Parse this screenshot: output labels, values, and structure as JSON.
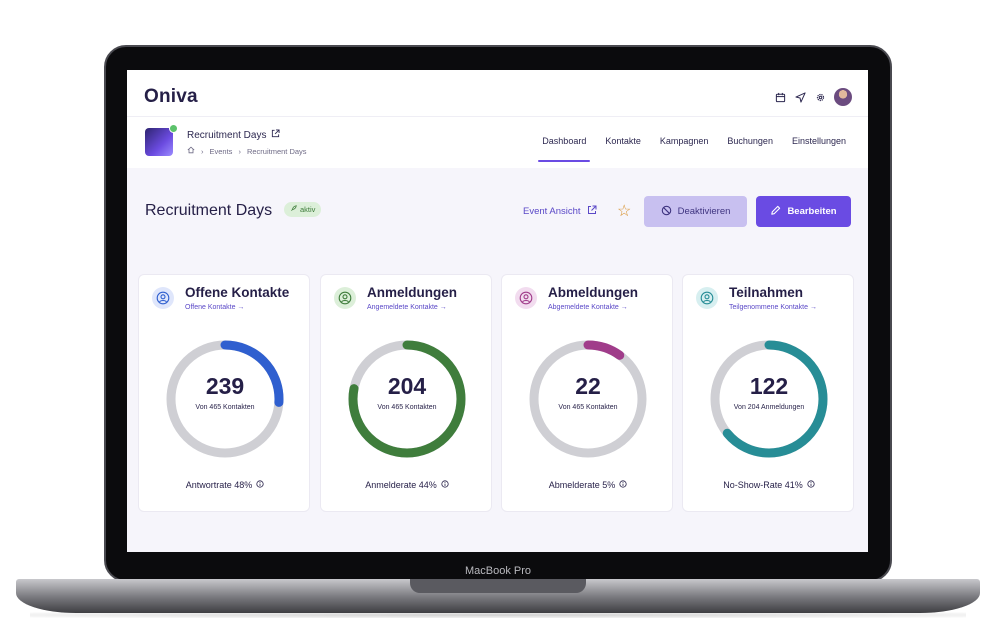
{
  "app": {
    "logo": "Oniva",
    "device_label": "MacBook Pro"
  },
  "header": {
    "icons": [
      "calendar-icon",
      "send-icon",
      "gear-icon",
      "user-avatar"
    ],
    "event_name": "Recruitment Days",
    "breadcrumb": [
      "Events",
      "Recruitment Days"
    ],
    "tabs": [
      {
        "label": "Dashboard",
        "active": true
      },
      {
        "label": "Kontakte",
        "active": false
      },
      {
        "label": "Kampagnen",
        "active": false
      },
      {
        "label": "Buchungen",
        "active": false
      },
      {
        "label": "Einstellungen",
        "active": false
      }
    ]
  },
  "page": {
    "title": "Recruitment Days",
    "status_badge": "aktiv",
    "event_view_label": "Event Ansicht",
    "deactivate_label": "Deaktivieren",
    "edit_label": "Bearbeiten"
  },
  "cards": [
    {
      "title": "Offene Kontakte",
      "link": "Offene Kontakte →",
      "value": "239",
      "sub": "Von 465 Kontakten",
      "rate": "Antwortrate 48%",
      "progress": 0.26,
      "color": "#2f5fcf",
      "icon_bg": "#dfe6fb",
      "icon_color": "#2f5fcf"
    },
    {
      "title": "Anmeldungen",
      "link": "Angemeldete Kontakte →",
      "value": "204",
      "sub": "Von 465 Kontakten",
      "rate": "Anmelderate 44%",
      "progress": 0.78,
      "color": "#3f7d3c",
      "icon_bg": "#dcefd9",
      "icon_color": "#3f7d3c"
    },
    {
      "title": "Abmeldungen",
      "link": "Abgemeldete Kontakte →",
      "value": "22",
      "sub": "Von 465 Kontakten",
      "rate": "Abmelderate 5%",
      "progress": 0.1,
      "color": "#a03c8a",
      "icon_bg": "#f2dcef",
      "icon_color": "#a03c8a"
    },
    {
      "title": "Teilnahmen",
      "link": "Teilgenommene Kontakte →",
      "value": "122",
      "sub": "Von 204 Anmeldungen",
      "rate": "No-Show-Rate 41%",
      "progress": 0.64,
      "color": "#278d96",
      "icon_bg": "#d7eff0",
      "icon_color": "#278d96"
    }
  ],
  "colors": {
    "accent": "#6a4be3",
    "ring_track": "#cfcfd4"
  }
}
